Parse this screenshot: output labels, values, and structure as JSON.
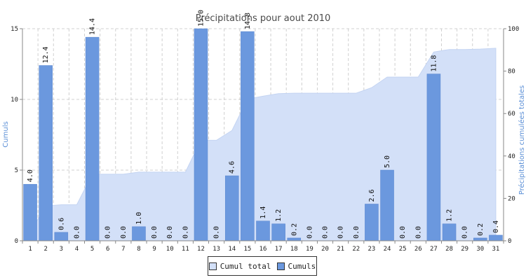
{
  "chart_data": {
    "type": "bar",
    "title": "Précipitations pour aout 2010",
    "ylabel": "Cumuls",
    "y2label": "Précipitations cumulées totales",
    "categories": [
      "1",
      "2",
      "3",
      "4",
      "5",
      "6",
      "7",
      "8",
      "9",
      "10",
      "11",
      "12",
      "13",
      "14",
      "15",
      "16",
      "17",
      "18",
      "19",
      "20",
      "21",
      "22",
      "23",
      "24",
      "25",
      "26",
      "27",
      "28",
      "29",
      "30",
      "31"
    ],
    "series": [
      {
        "name": "Cumuls",
        "type": "bar",
        "axis": "left",
        "color": "#6b98de",
        "values": [
          4.0,
          12.4,
          0.6,
          0.0,
          14.4,
          0.0,
          0.0,
          1.0,
          0.0,
          0.0,
          0.0,
          15.0,
          0.0,
          4.6,
          14.8,
          1.4,
          1.2,
          0.2,
          0.0,
          0.0,
          0.0,
          0.0,
          2.6,
          5.0,
          0.0,
          0.0,
          11.8,
          1.2,
          0.0,
          0.2,
          0.4
        ],
        "labels": [
          "4.0",
          "12.4",
          "0.6",
          "0.0",
          "14.4",
          "0.0",
          "0.0",
          "1.0",
          "0.0",
          "0.0",
          "0.0",
          "15.0",
          "0.0",
          "4.6",
          "14.8",
          "1.4",
          "1.2",
          "0.2",
          "0.0",
          "0.0",
          "0.0",
          "0.0",
          "2.6",
          "5.0",
          "0.0",
          "0.0",
          "11.8",
          "1.2",
          "0.0",
          "0.2",
          "0.4"
        ]
      },
      {
        "name": "Cumul total",
        "type": "area",
        "axis": "right",
        "color": "#d3e0f8",
        "values": [
          4.0,
          16.4,
          17.0,
          17.0,
          31.4,
          31.4,
          31.4,
          32.4,
          32.4,
          32.4,
          32.4,
          47.4,
          47.4,
          52.0,
          66.8,
          68.2,
          69.4,
          69.6,
          69.6,
          69.6,
          69.6,
          69.6,
          72.2,
          77.2,
          77.2,
          77.2,
          89.0,
          90.2,
          90.2,
          90.4,
          90.8
        ]
      }
    ],
    "yticks": [
      "0",
      "5",
      "10",
      "15"
    ],
    "y2ticks": [
      "0",
      "20",
      "40",
      "60",
      "80",
      "100"
    ],
    "ylim": [
      0,
      15
    ],
    "y2lim": [
      0,
      100
    ],
    "grid": true,
    "legend_position": "bottom-center"
  },
  "legend": {
    "items": [
      {
        "label": "Cumul total",
        "color": "#d3e0f8"
      },
      {
        "label": "Cumuls",
        "color": "#6b98de"
      }
    ]
  }
}
